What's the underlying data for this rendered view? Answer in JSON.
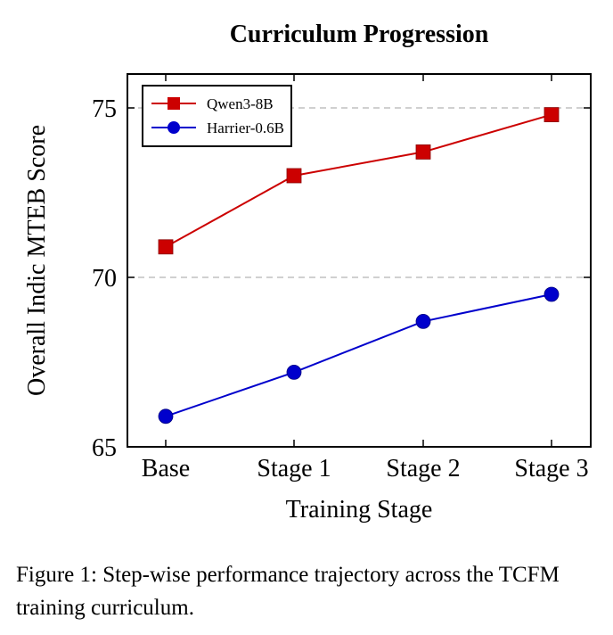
{
  "chart_data": {
    "type": "line",
    "title": "Curriculum Progression",
    "xlabel": "Training Stage",
    "ylabel": "Overall Indic MTEB Score",
    "categories": [
      "Base",
      "Stage 1",
      "Stage 2",
      "Stage 3"
    ],
    "ylim": [
      65,
      76
    ],
    "yticks": [
      65,
      70,
      75
    ],
    "grid": "horizontal dashed",
    "legend_position": "top-left",
    "series": [
      {
        "name": "Qwen3-8B",
        "values": [
          70.9,
          73.0,
          73.7,
          74.8
        ],
        "color": "#cc0000",
        "marker": "square"
      },
      {
        "name": "Harrier-0.6B",
        "values": [
          65.9,
          67.2,
          68.7,
          69.5
        ],
        "color": "#0000cc",
        "marker": "circle"
      }
    ]
  },
  "caption": {
    "label": "Figure 1:",
    "text": "Step-wise performance trajectory across the TCFM training curriculum."
  }
}
